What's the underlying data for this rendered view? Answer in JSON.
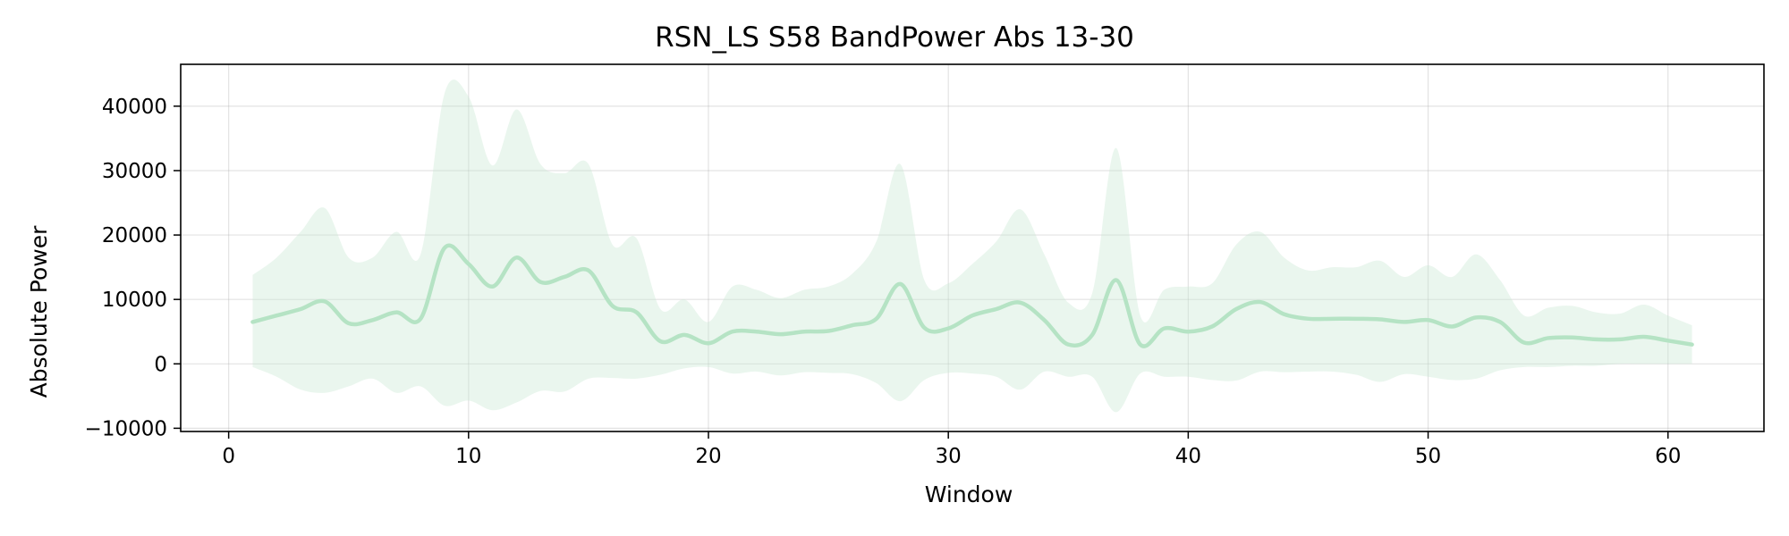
{
  "chart_data": {
    "type": "line",
    "title": "RSN_LS S58 BandPower Abs 13-30",
    "xlabel": "Window",
    "ylabel": "Absolute Power",
    "xlim": [
      -2,
      64
    ],
    "ylim": [
      -10500,
      46500
    ],
    "xticks": [
      0,
      10,
      20,
      30,
      40,
      50,
      60
    ],
    "xtick_labels": [
      "0",
      "10",
      "20",
      "30",
      "40",
      "50",
      "60"
    ],
    "yticks": [
      -10000,
      0,
      10000,
      20000,
      30000,
      40000
    ],
    "ytick_labels": [
      "−10000",
      "0",
      "10000",
      "20000",
      "30000",
      "40000"
    ],
    "grid": true,
    "colors": {
      "line": "#b5e3c4",
      "band": "#c9e8d2"
    },
    "series": [
      {
        "x": [
          1,
          2,
          3,
          4,
          5,
          6,
          7,
          8,
          9,
          10,
          11,
          12,
          13,
          14,
          15,
          16,
          17,
          18,
          19,
          20,
          21,
          22,
          23,
          24,
          25,
          26,
          27,
          28,
          29,
          30,
          31,
          32,
          33,
          34,
          35,
          36,
          37,
          38,
          39,
          40,
          41,
          42,
          43,
          44,
          45,
          46,
          47,
          48,
          49,
          50,
          51,
          52,
          53,
          54,
          55,
          56,
          57,
          58,
          59,
          60,
          61
        ],
        "mean": [
          6500,
          7500,
          8500,
          9700,
          6300,
          6800,
          8000,
          7000,
          18000,
          15500,
          12000,
          16500,
          12700,
          13500,
          14500,
          9000,
          8000,
          3500,
          4500,
          3200,
          5000,
          5000,
          4600,
          5000,
          5100,
          6000,
          7000,
          12400,
          5600,
          5500,
          7500,
          8500,
          9500,
          6800,
          3000,
          4500,
          13000,
          3000,
          5500,
          5000,
          5800,
          8500,
          9600,
          7700,
          7000,
          7000,
          7000,
          6900,
          6500,
          6800,
          5800,
          7200,
          6500,
          3300,
          4000,
          4100,
          3800,
          3800,
          4200,
          3600,
          3000
        ],
        "upper": [
          13800,
          16500,
          20500,
          24200,
          16500,
          16500,
          20500,
          17000,
          42000,
          41500,
          30800,
          39500,
          31000,
          29600,
          31000,
          18500,
          19500,
          8500,
          10000,
          6500,
          12000,
          11500,
          10200,
          11500,
          12000,
          14000,
          19000,
          31000,
          13000,
          12500,
          15500,
          19000,
          24000,
          17000,
          9500,
          11000,
          33500,
          7500,
          11500,
          12000,
          12500,
          18500,
          20500,
          16500,
          14500,
          15000,
          15000,
          16000,
          13500,
          15300,
          13500,
          17000,
          13000,
          7500,
          8700,
          9000,
          8000,
          7800,
          9200,
          7500,
          6000
        ],
        "lower": [
          -500,
          -2000,
          -4000,
          -4500,
          -3500,
          -2300,
          -4500,
          -3500,
          -6500,
          -5700,
          -7200,
          -6000,
          -4200,
          -4300,
          -2300,
          -2200,
          -2300,
          -1700,
          -700,
          -500,
          -1500,
          -1200,
          -1800,
          -1300,
          -1400,
          -1600,
          -3000,
          -5800,
          -2500,
          -1400,
          -1500,
          -2000,
          -4000,
          -1200,
          -2000,
          -2000,
          -7500,
          -1500,
          -2000,
          -2000,
          -2500,
          -2600,
          -1200,
          -1300,
          -1200,
          -1200,
          -1700,
          -2800,
          -1600,
          -2000,
          -2500,
          -2300,
          -1000,
          -500,
          -500,
          -300,
          -300,
          0,
          0,
          0,
          0
        ]
      }
    ]
  }
}
